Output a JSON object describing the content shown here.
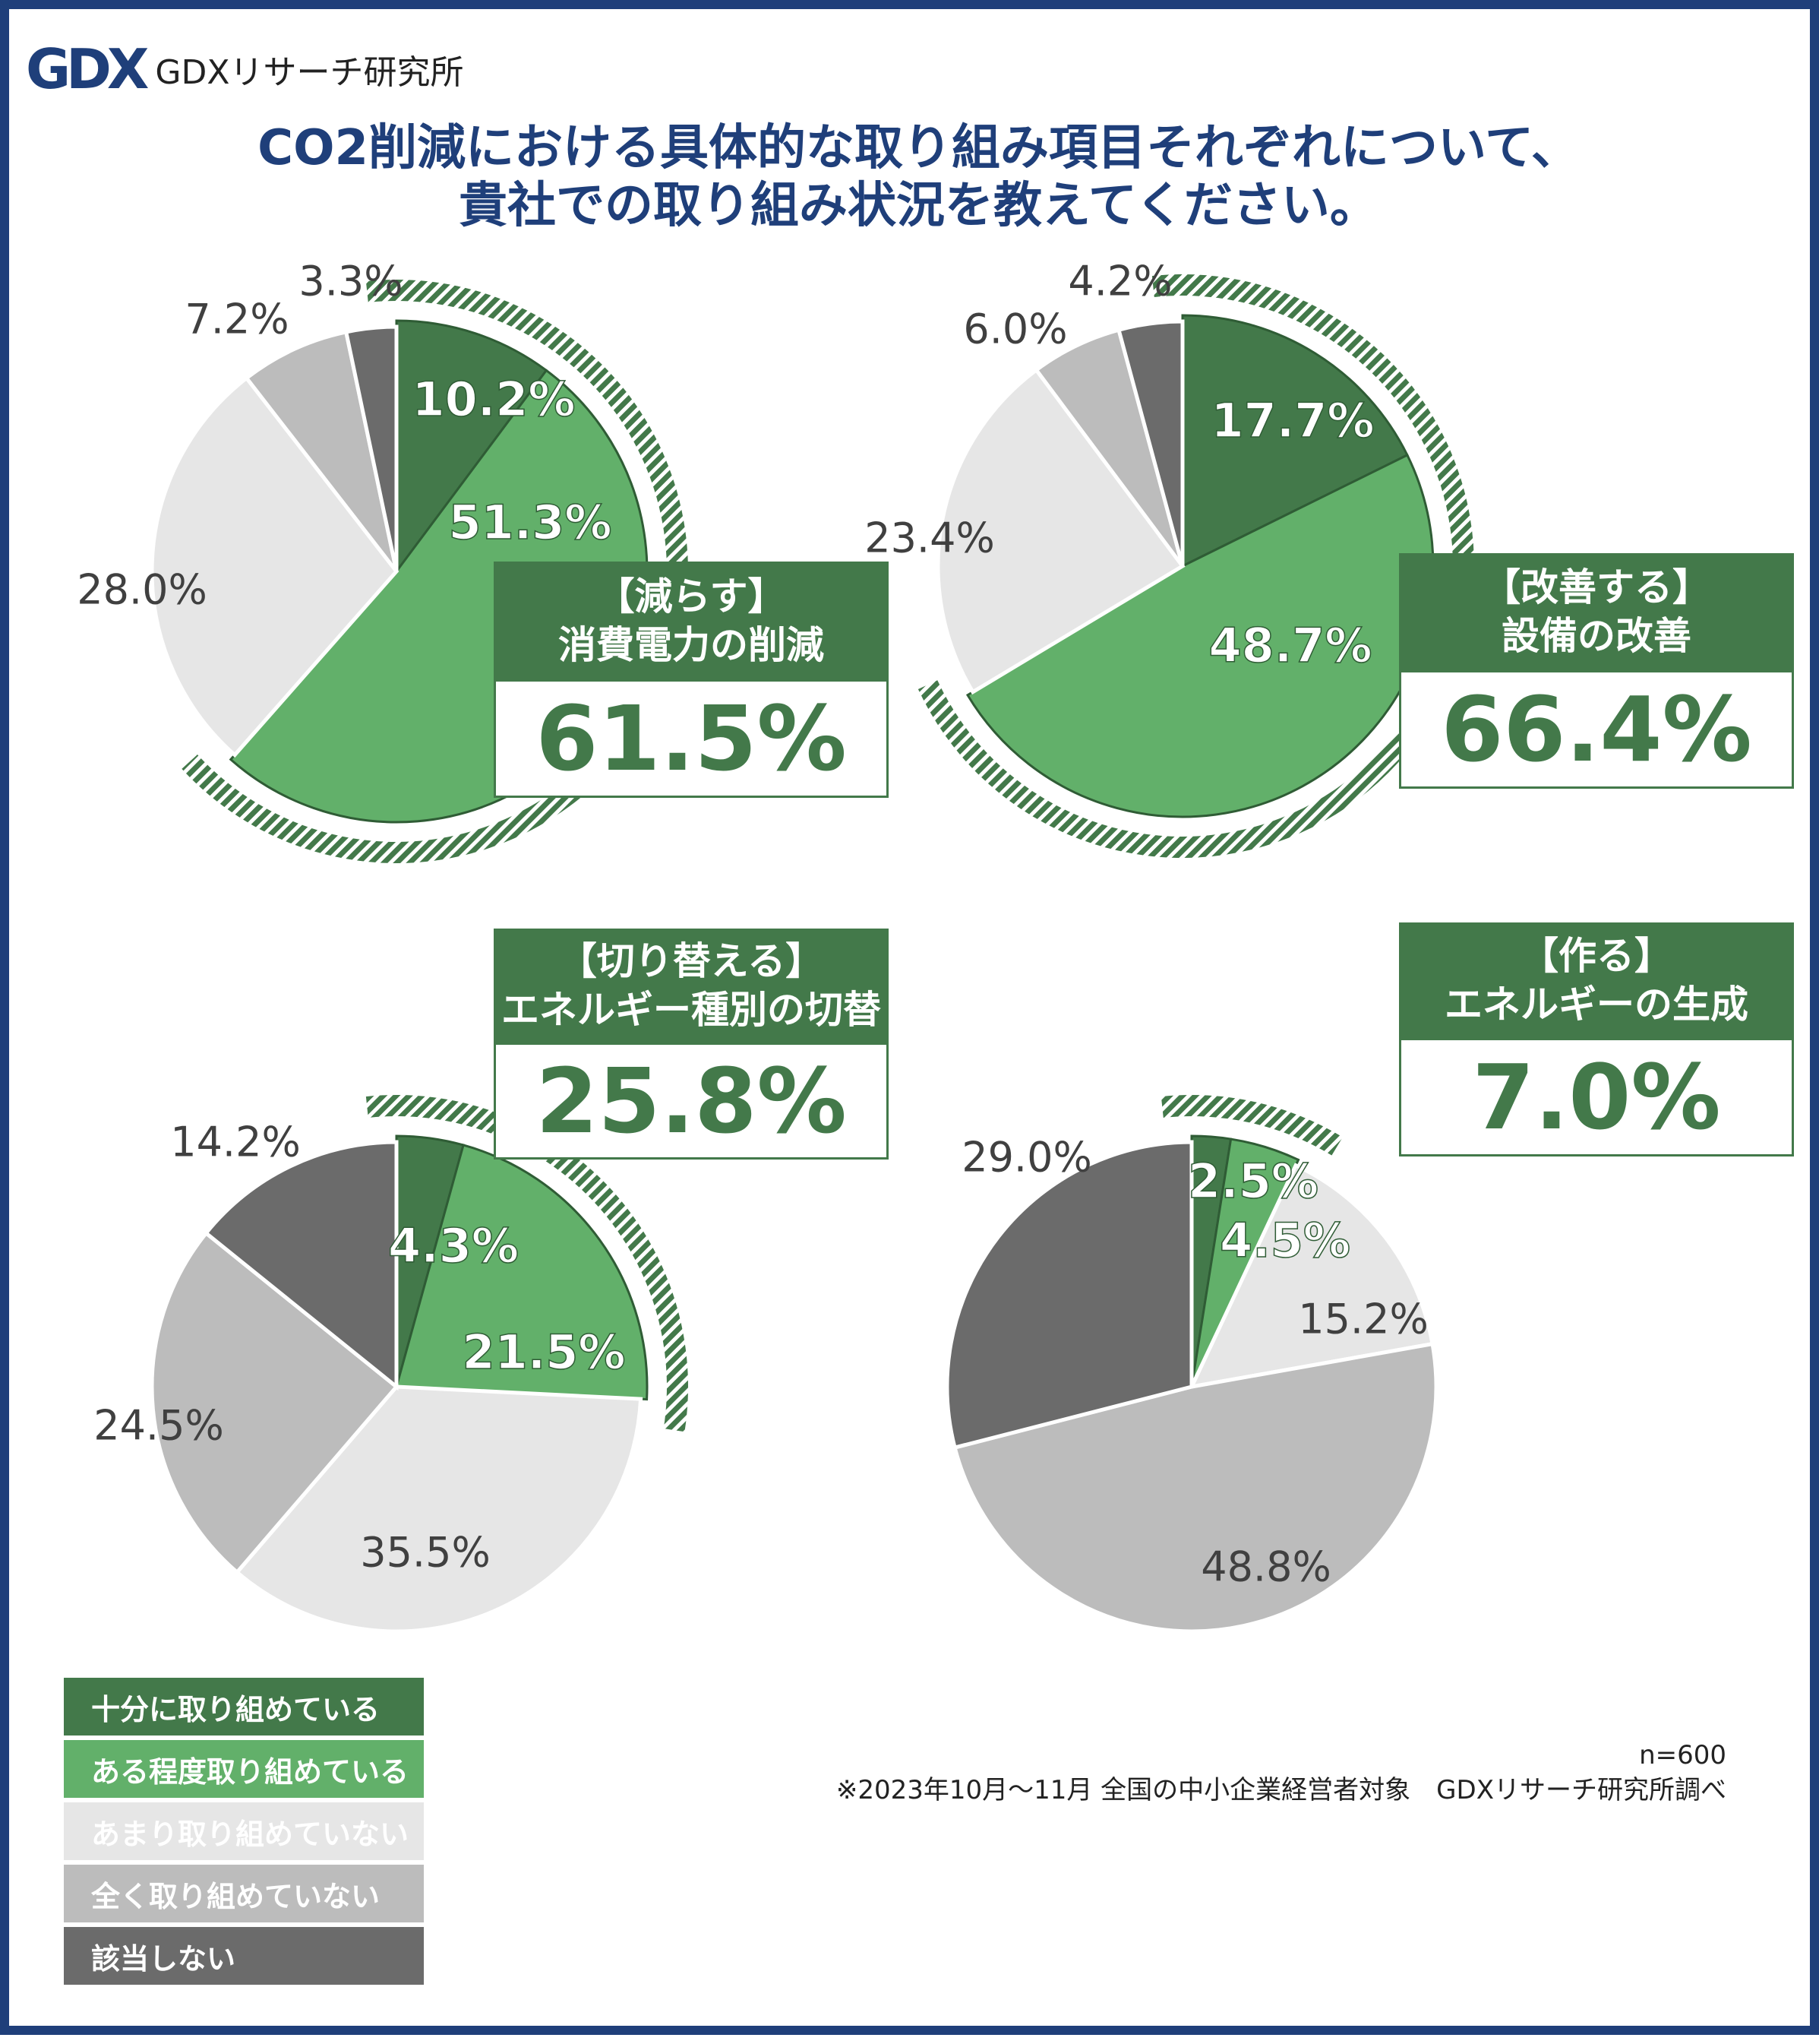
{
  "logo": {
    "mark": "GDX",
    "text": "GDXリサーチ研究所"
  },
  "title": {
    "line1": "CO2削減における具体的な取り組み項目それぞれについて、",
    "line2": "貴社での取り組み状況を教えてください。"
  },
  "colors": {
    "full": "#43794a",
    "somewhat": "#62b06a",
    "not_much": "#e6e6e6",
    "not_at_all": "#bcbcbc",
    "na": "#6b6b6b",
    "navy": "#1f3f7a"
  },
  "chart_data": [
    {
      "type": "pie",
      "title": "【減らす】消費電力の削減",
      "categories": [
        "十分に取り組めている",
        "ある程度取り組めている",
        "あまり取り組めていない",
        "全く取り組めていない",
        "該当しない"
      ],
      "values": [
        10.2,
        51.3,
        28.0,
        7.2,
        3.3
      ],
      "labels": [
        "10.2%",
        "51.3%",
        "28.0%",
        "7.2%",
        "3.3%"
      ],
      "highlight_total": "61.5%"
    },
    {
      "type": "pie",
      "title": "【改善する】設備の改善",
      "categories": [
        "十分に取り組めている",
        "ある程度取り組めている",
        "あまり取り組めていない",
        "全く取り組めていない",
        "該当しない"
      ],
      "values": [
        17.7,
        48.7,
        23.4,
        6.0,
        4.2
      ],
      "labels": [
        "17.7%",
        "48.7%",
        "23.4%",
        "6.0%",
        "4.2%"
      ],
      "highlight_total": "66.4%"
    },
    {
      "type": "pie",
      "title": "【切り替える】エネルギー種別の切替",
      "categories": [
        "十分に取り組めている",
        "ある程度取り組めている",
        "あまり取り組めていない",
        "全く取り組めていない",
        "該当しない"
      ],
      "values": [
        4.3,
        21.5,
        35.5,
        24.5,
        14.2
      ],
      "labels": [
        "4.3%",
        "21.5%",
        "35.5%",
        "24.5%",
        "14.2%"
      ],
      "highlight_total": "25.8%"
    },
    {
      "type": "pie",
      "title": "【作る】エネルギーの生成",
      "categories": [
        "十分に取り組めている",
        "ある程度取り組めている",
        "あまり取り組めていない",
        "全く取り組めていない",
        "該当しない"
      ],
      "values": [
        2.5,
        4.5,
        15.2,
        48.8,
        29.0
      ],
      "labels": [
        "2.5%",
        "4.5%",
        "15.2%",
        "48.8%",
        "29.0%"
      ],
      "highlight_total": "7.0%"
    }
  ],
  "callouts": [
    {
      "head1": "【減らす】",
      "head2": "消費電力の削減",
      "value": "61.5%"
    },
    {
      "head1": "【改善する】",
      "head2": "設備の改善",
      "value": "66.4%"
    },
    {
      "head1": "【切り替える】",
      "head2": "エネルギー種別の切替",
      "value": "25.8%"
    },
    {
      "head1": "【作る】",
      "head2": "エネルギーの生成",
      "value": "7.0%"
    }
  ],
  "legend": [
    {
      "label": "十分に取り組めている",
      "color": "#43794a",
      "text_color": "#ffffff"
    },
    {
      "label": "ある程度取り組めている",
      "color": "#62b06a",
      "text_color": "#ffffff"
    },
    {
      "label": "あまり取り組めていない",
      "color": "#e6e6e6",
      "text_color": "#ffffff"
    },
    {
      "label": "全く取り組めていない",
      "color": "#bcbcbc",
      "text_color": "#ffffff"
    },
    {
      "label": "該当しない",
      "color": "#6b6b6b",
      "text_color": "#ffffff"
    }
  ],
  "footer": {
    "n": "n=600",
    "note": "※2023年10月～11月 全国の中小企業経営者対象　GDXリサーチ研究所調べ"
  }
}
